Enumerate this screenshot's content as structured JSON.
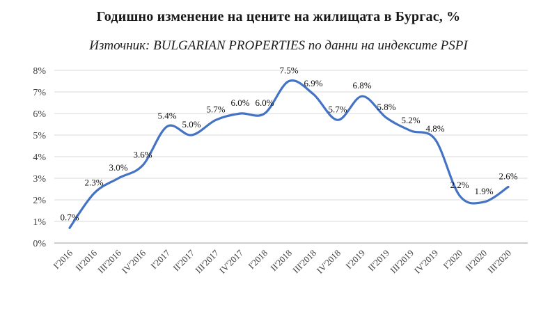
{
  "chart_data": {
    "type": "line",
    "title": "Годишно изменение на цените на жилищата в Бургас, %",
    "subtitle": "Източник: BULGARIAN PROPERTIES по данни на индексите PSPI",
    "categories": [
      "I'2016",
      "II'2016",
      "III'2016",
      "IV'2016",
      "I'2017",
      "II'2017",
      "III'2017",
      "IV'2017",
      "I'2018",
      "II'2018",
      "III'2018",
      "IV'2018",
      "I'2019",
      "II'2019",
      "III'2019",
      "IV'2019",
      "I'2020",
      "II'2020",
      "III'2020"
    ],
    "values": [
      0.7,
      2.3,
      3.0,
      3.6,
      5.4,
      5.0,
      5.7,
      6.0,
      6.0,
      7.5,
      6.9,
      5.7,
      6.8,
      5.8,
      5.2,
      4.8,
      2.2,
      1.9,
      2.6
    ],
    "data_labels": [
      "0.7%",
      "2.3%",
      "3.0%",
      "3.6%",
      "5.4%",
      "5.0%",
      "5.7%",
      "6.0%",
      "6.0%",
      "7.5%",
      "6.9%",
      "5.7%",
      "6.8%",
      "5.8%",
      "5.2%",
      "4.8%",
      "2.2%",
      "1.9%",
      "2.6%"
    ],
    "ylim": [
      0,
      8
    ],
    "ytick_step": 1,
    "ytick_labels": [
      "0%",
      "1%",
      "2%",
      "3%",
      "4%",
      "5%",
      "6%",
      "7%",
      "8%"
    ],
    "xlabel": "",
    "ylabel": "",
    "grid": true,
    "legend": "none",
    "line_color": "#4472C4",
    "grid_color": "#D9D9D9",
    "axis_color": "#BDBDBD",
    "tick_color": "#3F3F3F"
  }
}
